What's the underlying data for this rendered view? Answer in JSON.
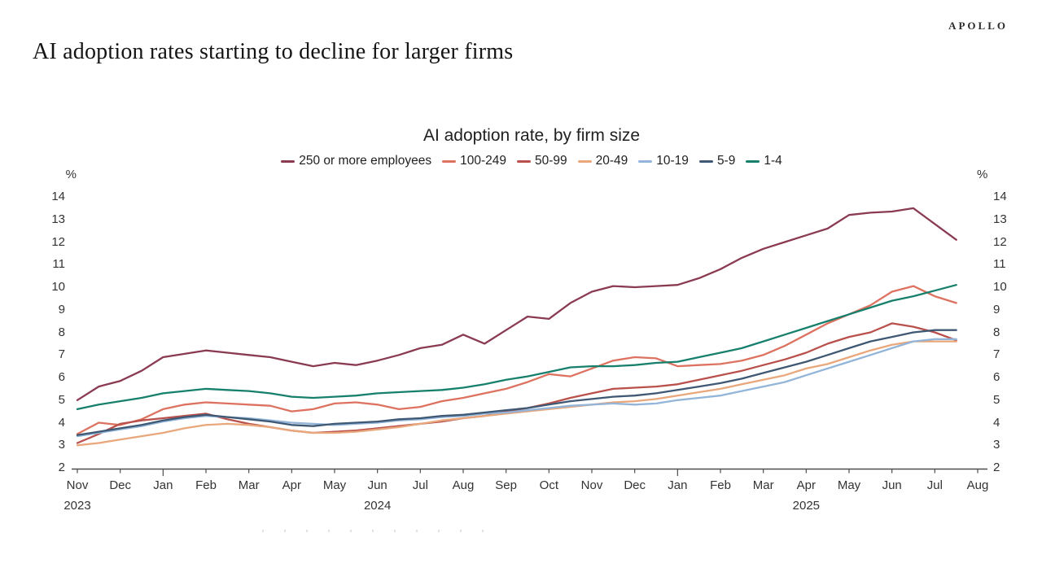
{
  "page": {
    "brand": "APOLLO",
    "headline": "AI adoption rates starting to decline for larger firms"
  },
  "chart_data": {
    "type": "line",
    "title": "AI adoption rate, by firm size",
    "unit_label_left": "%",
    "unit_label_right": "%",
    "ylim": [
      2,
      14
    ],
    "yticks": [
      2,
      3,
      4,
      5,
      6,
      7,
      8,
      9,
      10,
      11,
      12,
      13,
      14
    ],
    "grid": false,
    "legend_position": "top",
    "points_per_month": 2,
    "x_months": [
      "Nov",
      "Dec",
      "Jan",
      "Feb",
      "Mar",
      "Apr",
      "May",
      "Jun",
      "Jul",
      "Aug",
      "Sep",
      "Oct",
      "Nov",
      "Dec",
      "Jan",
      "Feb",
      "Mar",
      "Apr",
      "May",
      "Jun",
      "Jul",
      "Aug"
    ],
    "year_labels": [
      {
        "text": "2023",
        "month_index": 0
      },
      {
        "text": "2024",
        "month_index": 7
      },
      {
        "text": "2025",
        "month_index": 17
      }
    ],
    "series": [
      {
        "name": "250 or more employees",
        "color": "#8a3b52",
        "values": [
          5.0,
          5.6,
          5.85,
          6.3,
          6.9,
          7.05,
          7.2,
          7.1,
          7.0,
          6.9,
          6.7,
          6.5,
          6.65,
          6.55,
          6.75,
          7.0,
          7.3,
          7.45,
          7.9,
          7.5,
          8.1,
          8.7,
          8.6,
          9.3,
          9.8,
          10.05,
          10.0,
          10.05,
          10.1,
          10.4,
          10.8,
          11.3,
          11.7,
          12.0,
          12.3,
          12.6,
          13.2,
          13.3,
          13.35,
          13.5,
          12.8,
          12.1
        ]
      },
      {
        "name": "100-249",
        "color": "#dd7260",
        "values": [
          3.5,
          4.0,
          3.9,
          4.15,
          4.6,
          4.8,
          4.9,
          4.85,
          4.8,
          4.75,
          4.5,
          4.6,
          4.85,
          4.9,
          4.8,
          4.6,
          4.7,
          4.95,
          5.1,
          5.3,
          5.5,
          5.8,
          6.15,
          6.05,
          6.4,
          6.75,
          6.9,
          6.85,
          6.5,
          6.55,
          6.6,
          6.75,
          7.0,
          7.4,
          7.9,
          8.4,
          8.8,
          9.2,
          9.8,
          10.05,
          9.6,
          9.3
        ]
      },
      {
        "name": "50-99",
        "color": "#b9504b",
        "values": [
          3.1,
          3.5,
          3.95,
          4.1,
          4.2,
          4.3,
          4.4,
          4.15,
          3.95,
          3.8,
          3.65,
          3.55,
          3.6,
          3.65,
          3.75,
          3.85,
          3.95,
          4.05,
          4.2,
          4.3,
          4.5,
          4.65,
          4.85,
          5.1,
          5.3,
          5.5,
          5.55,
          5.6,
          5.7,
          5.9,
          6.1,
          6.3,
          6.55,
          6.8,
          7.1,
          7.5,
          7.8,
          8.0,
          8.4,
          8.25,
          8.0,
          7.65
        ]
      },
      {
        "name": "20-49",
        "color": "#e9a77c",
        "values": [
          3.0,
          3.1,
          3.25,
          3.4,
          3.55,
          3.75,
          3.9,
          3.95,
          3.9,
          3.8,
          3.65,
          3.55,
          3.55,
          3.6,
          3.7,
          3.8,
          3.95,
          4.1,
          4.2,
          4.3,
          4.4,
          4.5,
          4.6,
          4.7,
          4.8,
          4.9,
          4.95,
          5.05,
          5.2,
          5.35,
          5.5,
          5.7,
          5.9,
          6.1,
          6.4,
          6.6,
          6.9,
          7.2,
          7.45,
          7.6,
          7.6,
          7.6
        ]
      },
      {
        "name": "10-19",
        "color": "#92b5d9",
        "values": [
          3.4,
          3.55,
          3.7,
          3.85,
          4.05,
          4.2,
          4.3,
          4.25,
          4.2,
          4.1,
          4.0,
          3.95,
          3.9,
          3.95,
          4.0,
          4.1,
          4.15,
          4.25,
          4.3,
          4.4,
          4.45,
          4.55,
          4.65,
          4.75,
          4.8,
          4.85,
          4.8,
          4.85,
          5.0,
          5.1,
          5.2,
          5.4,
          5.6,
          5.8,
          6.1,
          6.4,
          6.7,
          7.0,
          7.3,
          7.6,
          7.7,
          7.7
        ]
      },
      {
        "name": "5-9",
        "color": "#3f5873",
        "values": [
          3.45,
          3.6,
          3.75,
          3.9,
          4.1,
          4.25,
          4.35,
          4.25,
          4.15,
          4.05,
          3.9,
          3.85,
          3.95,
          4.0,
          4.05,
          4.15,
          4.2,
          4.3,
          4.35,
          4.45,
          4.55,
          4.65,
          4.8,
          4.95,
          5.05,
          5.15,
          5.2,
          5.3,
          5.45,
          5.6,
          5.75,
          5.95,
          6.2,
          6.45,
          6.7,
          7.0,
          7.3,
          7.6,
          7.8,
          8.0,
          8.1,
          8.1
        ]
      },
      {
        "name": "1-4",
        "color": "#17806d",
        "values": [
          4.6,
          4.8,
          4.95,
          5.1,
          5.3,
          5.4,
          5.5,
          5.45,
          5.4,
          5.3,
          5.15,
          5.1,
          5.15,
          5.2,
          5.3,
          5.35,
          5.4,
          5.45,
          5.55,
          5.7,
          5.9,
          6.05,
          6.25,
          6.45,
          6.5,
          6.5,
          6.55,
          6.65,
          6.7,
          6.9,
          7.1,
          7.3,
          7.6,
          7.9,
          8.2,
          8.5,
          8.8,
          9.1,
          9.4,
          9.6,
          9.85,
          10.1
        ]
      }
    ]
  }
}
